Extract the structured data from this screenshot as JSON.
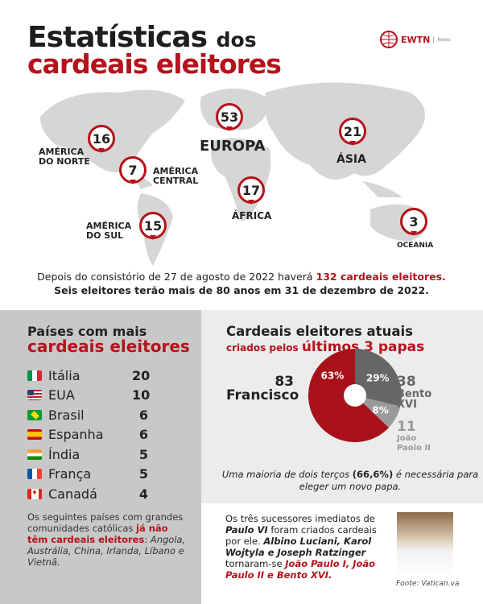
{
  "header": {
    "title_big": "Estatísticas",
    "title_small": "dos",
    "title_line2": "cardeais eleitores",
    "logo": "EWTN",
    "logo_sub": "News"
  },
  "map": {
    "regions": [
      {
        "name": "AMÉRICA DO NORTE",
        "count": "16"
      },
      {
        "name": "AMÉRICA CENTRAL",
        "count": "7"
      },
      {
        "name": "AMÉRICA DO SUL",
        "count": "15"
      },
      {
        "name": "EUROPA",
        "count": "53"
      },
      {
        "name": "ÁFRICA",
        "count": "17"
      },
      {
        "name": "ÁSIA",
        "count": "21"
      },
      {
        "name": "OCEANIA",
        "count": "3"
      }
    ]
  },
  "note": {
    "l1a": "Depois do consistório de 27 de agosto de 2022 haverá ",
    "l1b": "132 cardeais eleitores.",
    "l2a": "Seis eleitores terão mais de 80 anos",
    "l2b": " em 31 de dezembro de 2022."
  },
  "countries": {
    "title1": "Países com mais",
    "title2": "cardeais eleitores",
    "items": [
      {
        "name": "Itália",
        "value": "20"
      },
      {
        "name": "EUA",
        "value": "10"
      },
      {
        "name": "Brasil",
        "value": "6"
      },
      {
        "name": "Espanha",
        "value": "6"
      },
      {
        "name": "Índia",
        "value": "5"
      },
      {
        "name": "França",
        "value": "5"
      },
      {
        "name": "Canadá",
        "value": "4"
      }
    ],
    "text_a": "Os seguintes países com grandes comunidades católicas ",
    "text_b": "já não têm cardeais eleitores",
    "text_c": ": ",
    "text_d": "Angola, Austrália, China, Irlanda, Líbano e Vietnã."
  },
  "chart_data": {
    "type": "pie",
    "title": "Cardeais eleitores atuais",
    "subtitle_a": "criados pelos",
    "subtitle_b": "últimos 3 papas",
    "slices": [
      {
        "name": "Francisco",
        "value": 83,
        "percent": "63%",
        "color": "#a8101a"
      },
      {
        "name": "Bento XVI",
        "name1": "Bento",
        "name2": "XVI",
        "value": 38,
        "percent": "29%",
        "color": "#666666"
      },
      {
        "name": "João Paolo II",
        "name1": "João",
        "name2": "Paolo II",
        "value": 11,
        "percent": "8%",
        "color": "#9a9a9a"
      }
    ],
    "note_a": "Uma maioria de dois terços ",
    "note_b": "(66,6%)",
    "note_c": " é necessária para eleger um novo papa."
  },
  "bottom": {
    "a": "Os três sucessores imediatos de ",
    "b": "Paulo VI",
    "c": " foram criados cardeais por ele. ",
    "d": "Albino Luciani, Karol Wojtyla e Joseph Ratzinger",
    "e": " tornaram-se ",
    "f": "João Paulo I, João Paulo II e Bento XVI.",
    "source": "Fonte: Vatican.va"
  }
}
